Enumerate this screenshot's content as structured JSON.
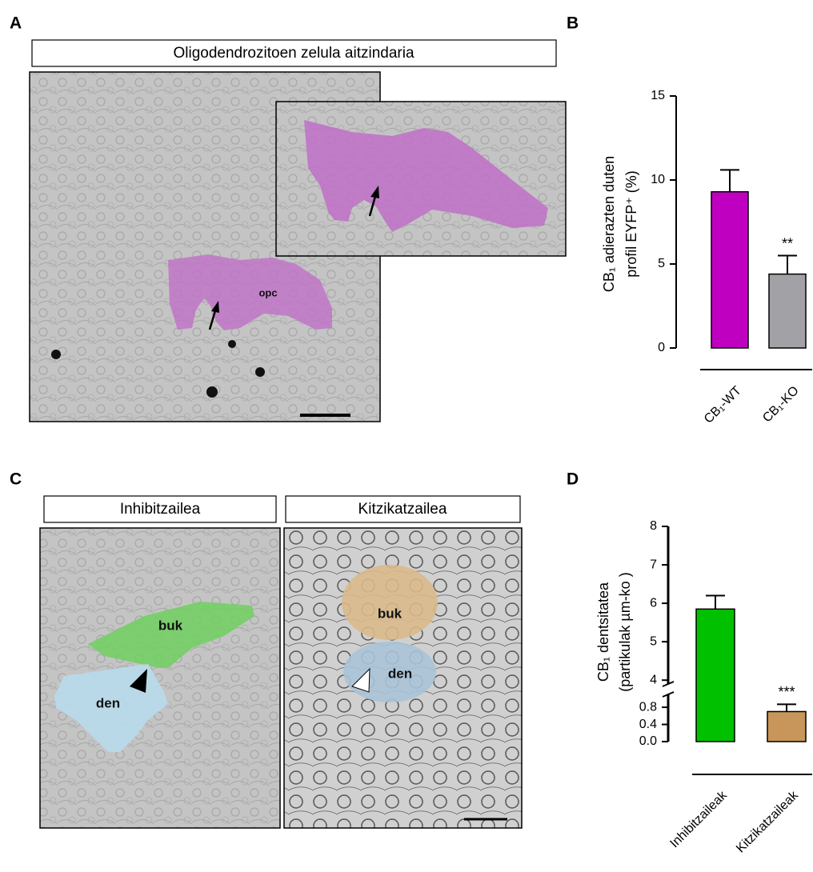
{
  "figure": {
    "panels": [
      "A",
      "B",
      "C",
      "D"
    ]
  },
  "panel_a": {
    "title": "Oligodendrozitoen zelula aitzindaria",
    "labels": [
      "opc"
    ]
  },
  "panel_c": {
    "images": [
      {
        "title": "Inhibitzailea",
        "labels": [
          "buk",
          "den"
        ]
      },
      {
        "title": "Kitzikatzailea",
        "labels": [
          "buk",
          "den"
        ]
      }
    ]
  },
  "chart_data": [
    {
      "type": "bar",
      "ylabel": [
        "CB₁ adierazten duten",
        "profil EYFP⁺ (%)"
      ],
      "categories": [
        "CB₁-WT",
        "CB₁-KO"
      ],
      "values": [
        9.3,
        4.4
      ],
      "errors": [
        1.3,
        1.1
      ],
      "colors": [
        "#c000c0",
        "#a2a2a6"
      ],
      "significance": [
        null,
        "**"
      ],
      "ylim": [
        0,
        15
      ],
      "yticks": [
        0,
        5,
        10,
        15
      ]
    },
    {
      "type": "bar",
      "ylabel": [
        "CB₁ dentsitatea",
        "(partikulak µm-ko )"
      ],
      "categories": [
        "Inhibitzaileak",
        "Kitzikatzaileak"
      ],
      "values": [
        5.85,
        0.7
      ],
      "errors": [
        0.35,
        0.17
      ],
      "colors": [
        "#00c000",
        "#c8965a"
      ],
      "significance": [
        null,
        "***"
      ],
      "ylim": [
        0,
        8
      ],
      "ybreak": [
        1.1,
        3.9
      ],
      "yticks": [
        {
          "value": 0,
          "label": "0.0"
        },
        0.4,
        0.8,
        4,
        5,
        6,
        7,
        8
      ]
    }
  ]
}
